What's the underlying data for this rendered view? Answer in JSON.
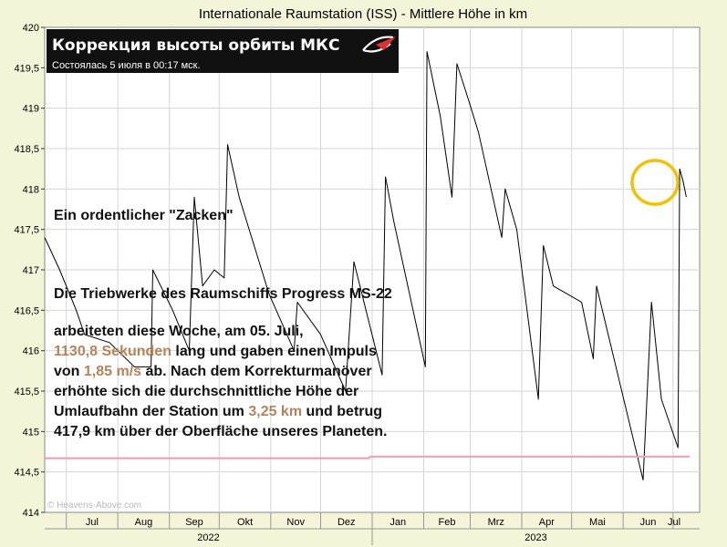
{
  "chart_data": {
    "type": "line",
    "title": "Internationale Raumstation (ISS) - Mittlere Höhe in km",
    "ylim": [
      414,
      420
    ],
    "y_ticks": [
      "414",
      "414,5",
      "415",
      "415,5",
      "416",
      "416,5",
      "417",
      "417,5",
      "418",
      "418,5",
      "419",
      "419,5",
      "420"
    ],
    "x_month_labels": [
      "Jul",
      "Aug",
      "Sep",
      "Okt",
      "Nov",
      "Dez",
      "Jan",
      "Feb",
      "Mrz",
      "Apr",
      "Mai",
      "Jun",
      "Jul"
    ],
    "x_year_labels": [
      "2022",
      "2023"
    ],
    "xlim": [
      "2022-06-18",
      "2023-07-17"
    ],
    "grid": true,
    "series": [
      {
        "color": "#000000",
        "x": [
          "2022-06-18",
          "2022-06-27",
          "2022-07-07",
          "2022-07-12",
          "2022-07-27",
          "2022-08-11",
          "2022-08-21",
          "2022-08-22",
          "2022-09-03",
          "2022-09-13",
          "2022-09-16",
          "2022-09-21",
          "2022-09-28",
          "2022-10-04",
          "2022-10-06",
          "2022-10-13",
          "2022-10-31",
          "2022-11-15",
          "2022-11-17",
          "2022-12-01",
          "2022-12-16",
          "2022-12-21",
          "2023-01-07",
          "2023-01-09",
          "2023-01-14",
          "2023-02-02",
          "2023-02-03",
          "2023-02-11",
          "2023-02-18",
          "2023-02-21",
          "2023-02-28",
          "2023-03-06",
          "2023-03-20",
          "2023-03-22",
          "2023-03-29",
          "2023-04-11",
          "2023-04-14",
          "2023-04-20",
          "2023-05-07",
          "2023-05-14",
          "2023-05-16",
          "2023-06-13",
          "2023-06-18",
          "2023-06-24",
          "2023-07-04",
          "2023-07-05",
          "2023-07-07",
          "2023-07-09"
        ],
        "values": [
          417.4,
          417.0,
          416.5,
          416.2,
          416.1,
          415.8,
          415.8,
          417.0,
          416.5,
          416.0,
          417.9,
          416.8,
          417.0,
          416.9,
          418.55,
          417.9,
          416.7,
          416.0,
          416.6,
          416.2,
          415.5,
          417.1,
          415.7,
          418.15,
          417.6,
          415.8,
          419.7,
          418.9,
          417.9,
          419.55,
          419.1,
          418.7,
          417.4,
          418.0,
          417.5,
          415.4,
          417.3,
          416.8,
          416.6,
          415.9,
          416.8,
          414.4,
          416.6,
          415.4,
          414.8,
          418.25,
          418.1,
          417.9
        ]
      },
      {
        "color": "#f0a0b8",
        "x": [
          "2022-06-18",
          "2022-12-30",
          "2022-12-31",
          "2023-07-11"
        ],
        "values": [
          414.67,
          414.67,
          414.69,
          414.69
        ]
      }
    ]
  },
  "annotations": {
    "banner_title": "Коррекция высоты орбиты МКС",
    "banner_subtitle": "Состоялась 5 июля в 00:17 мск.",
    "zacken_label": "Ein ordentlicher \"Zacken\"",
    "heading": "Die Triebwerke des Raumschiffs Progress MS-22",
    "body_line1": "arbeiteten diese Woche, am 05. Juli,",
    "body_seconds": "1130,8 Sekunden",
    "body_line2_rest": " lang und gaben einen Impuls",
    "body_line3_pre": "von ",
    "body_speed": "1,85 m/s",
    "body_line3_rest": " ab. Nach dem Korrekturmanöver",
    "body_line4": "erhöhte sich die durchschnittliche Höhe der",
    "body_line5_pre": "Umlaufbahn der Station um ",
    "body_km": "3,25 km",
    "body_line5_rest": " und betrug",
    "body_line6": "417,9 km über der Oberfläche unseres Planeten.",
    "watermark": "© Heavens-Above.com",
    "highlight_color": "#b5835a",
    "circle_color": "#f2c200",
    "background_color": "#f4f4d8"
  }
}
